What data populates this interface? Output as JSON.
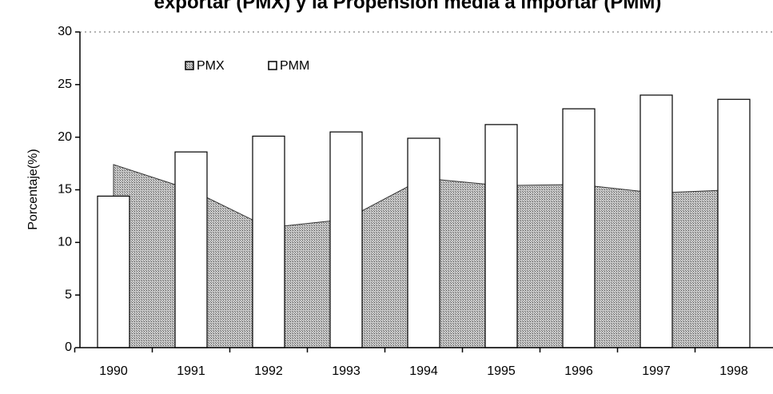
{
  "chart_data": {
    "type": "bar",
    "title": "exportar (PMX) y la Propensión media a importar (PMM)",
    "ylabel": "Porcentaje(%)",
    "categories": [
      "1990",
      "1991",
      "1992",
      "1993",
      "1994",
      "1995",
      "1996",
      "1997",
      "1998"
    ],
    "series": [
      {
        "name": "PMX",
        "type": "area",
        "color": "#a9a9a9",
        "values": [
          17.4,
          15.0,
          11.4,
          12.2,
          16.1,
          15.4,
          15.5,
          14.7,
          15.0
        ]
      },
      {
        "name": "PMM",
        "type": "bar",
        "color": "#ffffff",
        "values": [
          14.4,
          18.6,
          20.1,
          20.5,
          19.9,
          21.2,
          22.7,
          24.0,
          23.6
        ]
      }
    ],
    "ylim": [
      0,
      30
    ],
    "yticks": [
      0,
      5,
      10,
      15,
      20,
      25,
      30
    ],
    "legend": "top-left"
  }
}
